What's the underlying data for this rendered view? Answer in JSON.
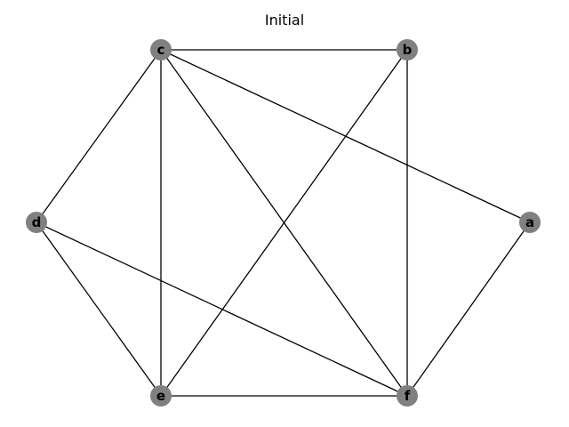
{
  "title": "Initial",
  "colors": {
    "node_fill": "#808080",
    "edge": "#000000",
    "label": "#000000",
    "background": "#ffffff"
  },
  "nodes": [
    {
      "id": "a",
      "label": "a"
    },
    {
      "id": "b",
      "label": "b"
    },
    {
      "id": "c",
      "label": "c"
    },
    {
      "id": "d",
      "label": "d"
    },
    {
      "id": "e",
      "label": "e"
    },
    {
      "id": "f",
      "label": "f"
    }
  ],
  "edges": [
    [
      "c",
      "b"
    ],
    [
      "c",
      "a"
    ],
    [
      "c",
      "d"
    ],
    [
      "c",
      "e"
    ],
    [
      "c",
      "f"
    ],
    [
      "b",
      "e"
    ],
    [
      "b",
      "f"
    ],
    [
      "a",
      "f"
    ],
    [
      "d",
      "e"
    ],
    [
      "d",
      "f"
    ],
    [
      "e",
      "f"
    ]
  ]
}
